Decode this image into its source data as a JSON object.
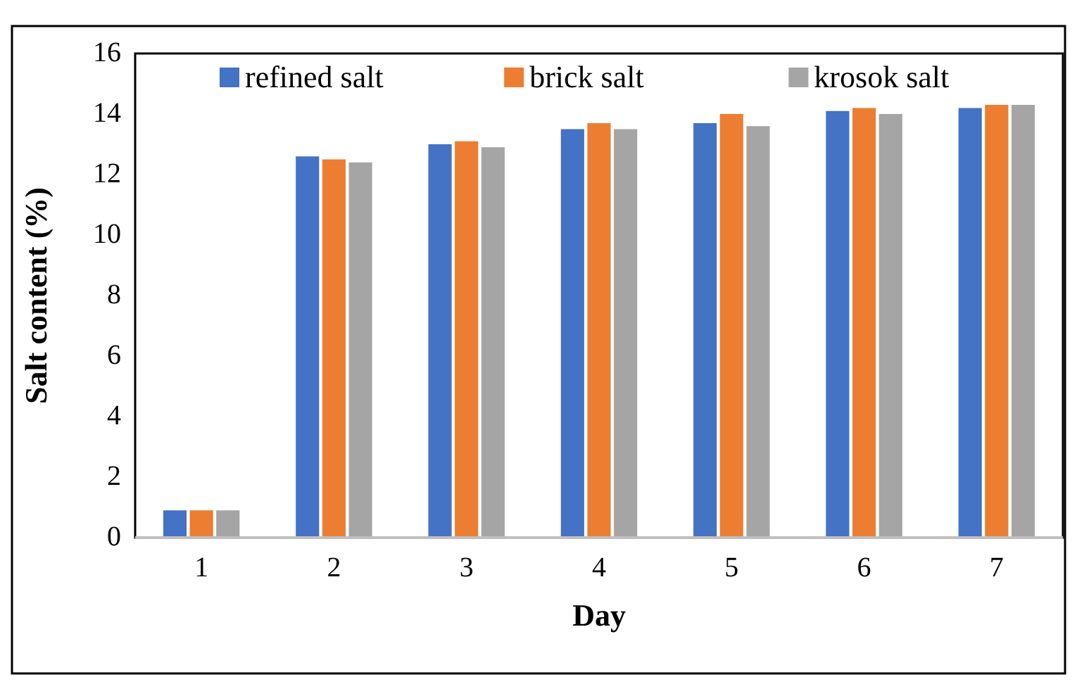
{
  "chart_data": {
    "type": "bar",
    "xlabel": "Day",
    "ylabel": "Salt content (%)",
    "categories": [
      "1",
      "2",
      "3",
      "4",
      "5",
      "6",
      "7"
    ],
    "series": [
      {
        "name": "refined salt",
        "color": "#4472c4",
        "values": [
          0.9,
          12.6,
          13.0,
          13.5,
          13.7,
          14.1,
          14.2
        ]
      },
      {
        "name": "brick salt",
        "color": "#ed7d31",
        "values": [
          0.9,
          12.5,
          13.1,
          13.7,
          14.0,
          14.2,
          14.3
        ]
      },
      {
        "name": "krosok salt",
        "color": "#a5a5a5",
        "values": [
          0.9,
          12.4,
          12.9,
          13.5,
          13.6,
          14.0,
          14.3
        ]
      }
    ],
    "ylim": [
      0,
      16
    ],
    "yticks": [
      0,
      2,
      4,
      6,
      8,
      10,
      12,
      14,
      16
    ],
    "grid": false,
    "legend": "top"
  }
}
